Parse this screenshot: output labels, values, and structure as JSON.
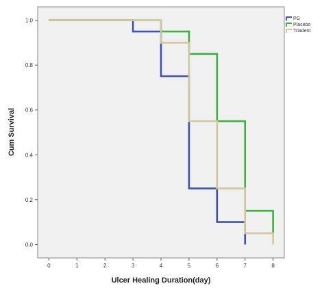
{
  "chart_data": {
    "type": "line",
    "step": true,
    "xlabel": "Ulcer Healing Duration(day)",
    "ylabel": "Cum Survival",
    "xlim": [
      -0.4,
      8.4
    ],
    "ylim": [
      -0.06,
      1.06
    ],
    "x_ticks": [
      0,
      1,
      2,
      3,
      4,
      5,
      6,
      7,
      8
    ],
    "x_tick_labels": [
      "0",
      "1",
      "2",
      "3",
      "4",
      "5",
      "6",
      "7",
      "8"
    ],
    "y_ticks": [
      0.0,
      0.2,
      0.4,
      0.6,
      0.8,
      1.0
    ],
    "y_tick_labels": [
      "0.0",
      "0.2",
      "0.4",
      "0.6",
      "0.8",
      "1.0"
    ],
    "grid": false,
    "plot_background": "#f0f0f0",
    "legend_position": "right",
    "series": [
      {
        "name": "PG",
        "color": "#3f51b5",
        "x": [
          0,
          3,
          4,
          5,
          6,
          7
        ],
        "y": [
          1.0,
          0.95,
          0.75,
          0.25,
          0.1,
          0.0
        ]
      },
      {
        "name": "Placebo",
        "color": "#3cb043",
        "x": [
          0,
          4,
          5,
          6,
          7,
          8
        ],
        "y": [
          1.0,
          0.95,
          0.85,
          0.55,
          0.15,
          0.05
        ]
      },
      {
        "name": "Triadent",
        "color": "#d2c79a",
        "x": [
          0,
          4,
          5,
          6,
          7,
          8
        ],
        "y": [
          1.0,
          0.9,
          0.55,
          0.25,
          0.05,
          0.0
        ]
      }
    ]
  }
}
